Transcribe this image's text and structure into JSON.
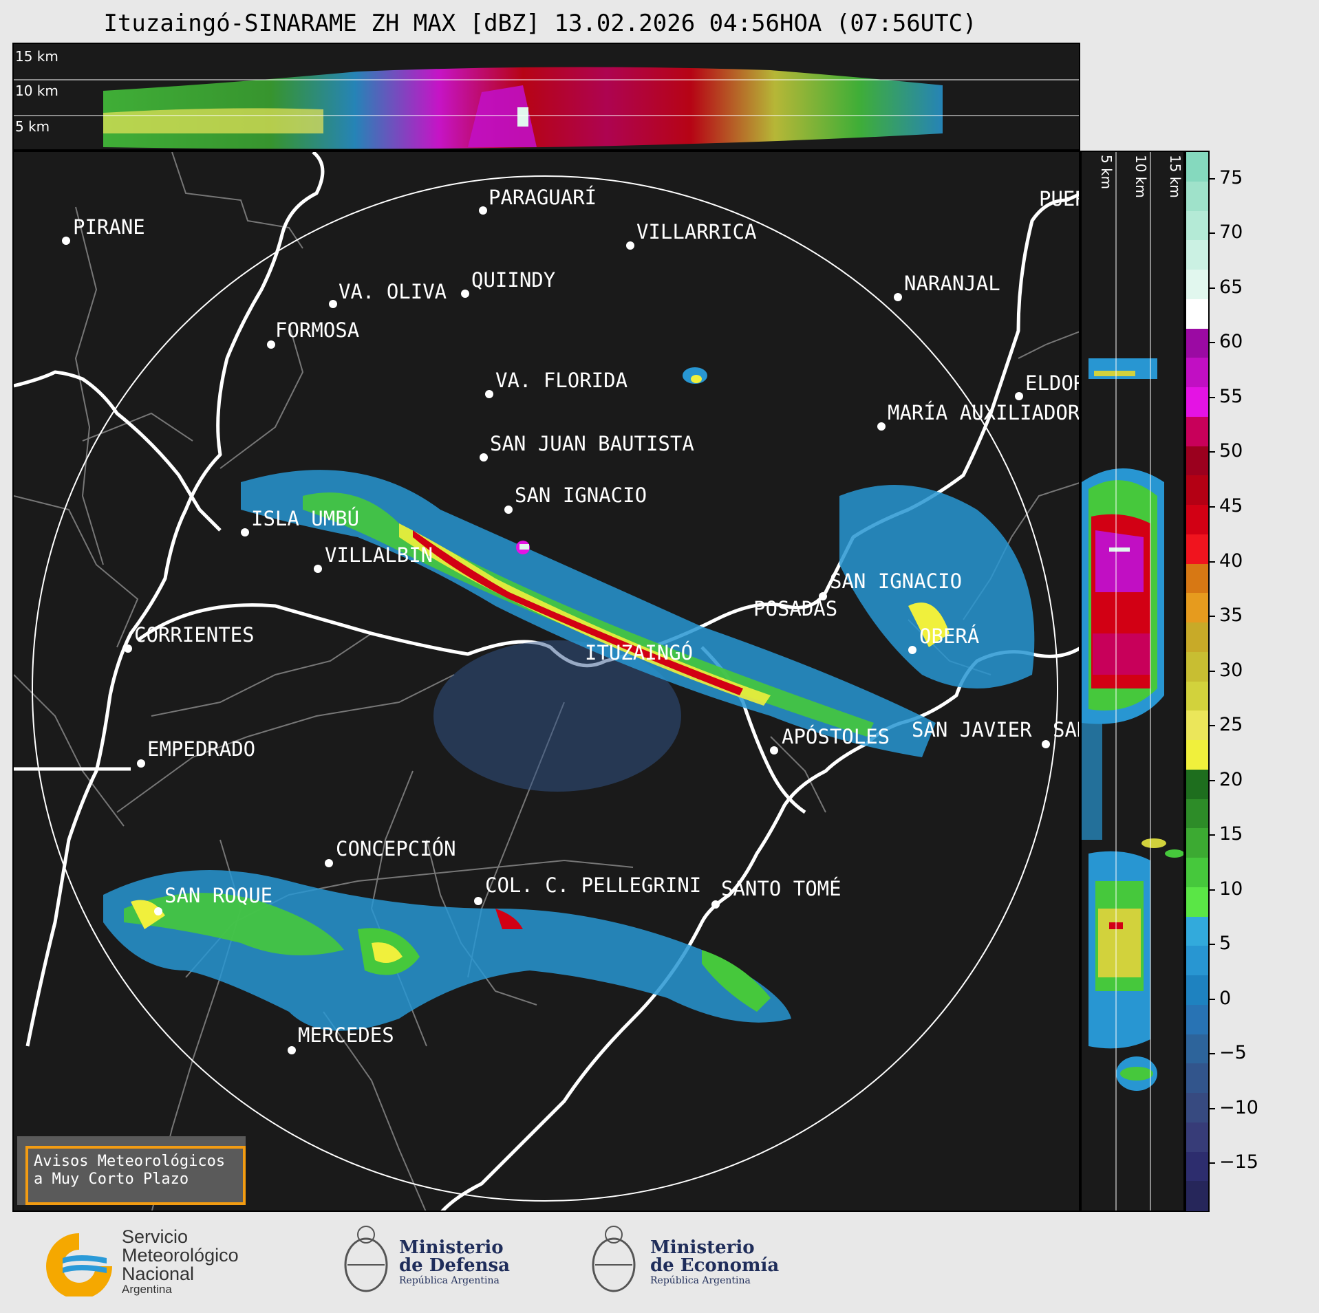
{
  "title": "Ituzaingó-SINARAME ZH MAX [dBZ] 13.02.2026 04:56HOA (07:56UTC)",
  "height_labels": [
    "15 km",
    "10 km",
    "5 km"
  ],
  "side_height_labels": [
    "5 km",
    "10 km",
    "15 km"
  ],
  "colorbar": {
    "ticks": [
      "75",
      "70",
      "65",
      "60",
      "55",
      "50",
      "45",
      "40",
      "35",
      "30",
      "25",
      "20",
      "15",
      "10",
      "5",
      "0",
      "−5",
      "−10",
      "−15"
    ],
    "colors": [
      "#85d9be",
      "#9fe2ca",
      "#b4ead6",
      "#cbf1e3",
      "#e1f7ee",
      "#ffffff",
      "#9b0aa3",
      "#c10fc3",
      "#e413e4",
      "#c8005a",
      "#9b001e",
      "#b40014",
      "#d20014",
      "#f0141e",
      "#d77814",
      "#e69b1e",
      "#c8aa28",
      "#c8be32",
      "#d2d23c",
      "#ebe65a",
      "#f0f03c",
      "#1e6e1e",
      "#2d8c28",
      "#3caa32",
      "#46c83c",
      "#5ae646",
      "#32aadc",
      "#2896d2",
      "#1e82c0",
      "#2873b4",
      "#2d649b",
      "#32558c",
      "#374a80",
      "#373c78",
      "#2d2d6e",
      "#26265a"
    ]
  },
  "cities": [
    {
      "name": "PARAGUARÍ"
    },
    {
      "name": "VILLARRICA"
    },
    {
      "name": "PIRANE"
    },
    {
      "name": "QUIINDY"
    },
    {
      "name": "VA. OLIVA"
    },
    {
      "name": "NARANJAL"
    },
    {
      "name": "FORMOSA"
    },
    {
      "name": "VA. FLORIDA"
    },
    {
      "name": "ELDOR"
    },
    {
      "name": "MARÍA AUXILIADOR"
    },
    {
      "name": "SAN JUAN BAUTISTA"
    },
    {
      "name": "SAN IGNACIO"
    },
    {
      "name": "ISLA UMBÚ"
    },
    {
      "name": "VILLALBIN"
    },
    {
      "name": "SAN IGNACIO"
    },
    {
      "name": "POSADAS"
    },
    {
      "name": "CORRIENTES"
    },
    {
      "name": "OBERÁ"
    },
    {
      "name": "ITUZAINGÓ"
    },
    {
      "name": "APÓSTOLES"
    },
    {
      "name": "SAN JAVIER"
    },
    {
      "name": "SAN"
    },
    {
      "name": "EMPEDRADO"
    },
    {
      "name": "CONCEPCIÓN"
    },
    {
      "name": "COL. C. PELLEGRINI"
    },
    {
      "name": "SANTO TOMÉ"
    },
    {
      "name": "SAN ROQUE"
    },
    {
      "name": "MERCEDES"
    },
    {
      "name": "PUER"
    }
  ],
  "notice": {
    "line1": "Avisos Meteorológicos",
    "line2": "a Muy Corto Plazo"
  },
  "logos": {
    "smn": {
      "line1": "Servicio",
      "line2": "Meteorológico",
      "line3": "Nacional",
      "line4": "Argentina"
    },
    "defensa": {
      "line1": "Ministerio",
      "line2": "de Defensa",
      "line3": "República Argentina"
    },
    "economia": {
      "line1": "Ministerio",
      "line2": "de Economía",
      "line3": "República Argentina"
    }
  }
}
